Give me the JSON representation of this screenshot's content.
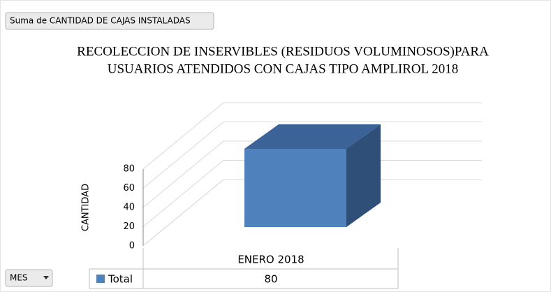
{
  "field_button": "Suma de CANTIDAD DE CAJAS INSTALADAS",
  "axis_button": "MES",
  "chart_data": {
    "type": "bar3d",
    "title": [
      "RECOLECCION DE INSERVIBLES (RESIDUOS VOLUMINOSOS)PARA",
      "USUARIOS ATENDIDOS CON CAJAS TIPO AMPLIROL 2018"
    ],
    "ylabel": "CANTIDAD",
    "categories": [
      "ENERO 2018"
    ],
    "series": [
      {
        "name": "Total",
        "color": "#4f81bd",
        "values": [
          80
        ]
      }
    ],
    "ylim": [
      0,
      80
    ],
    "yticks": [
      0,
      20,
      40,
      60,
      80
    ],
    "grid": true,
    "data_table": true
  }
}
